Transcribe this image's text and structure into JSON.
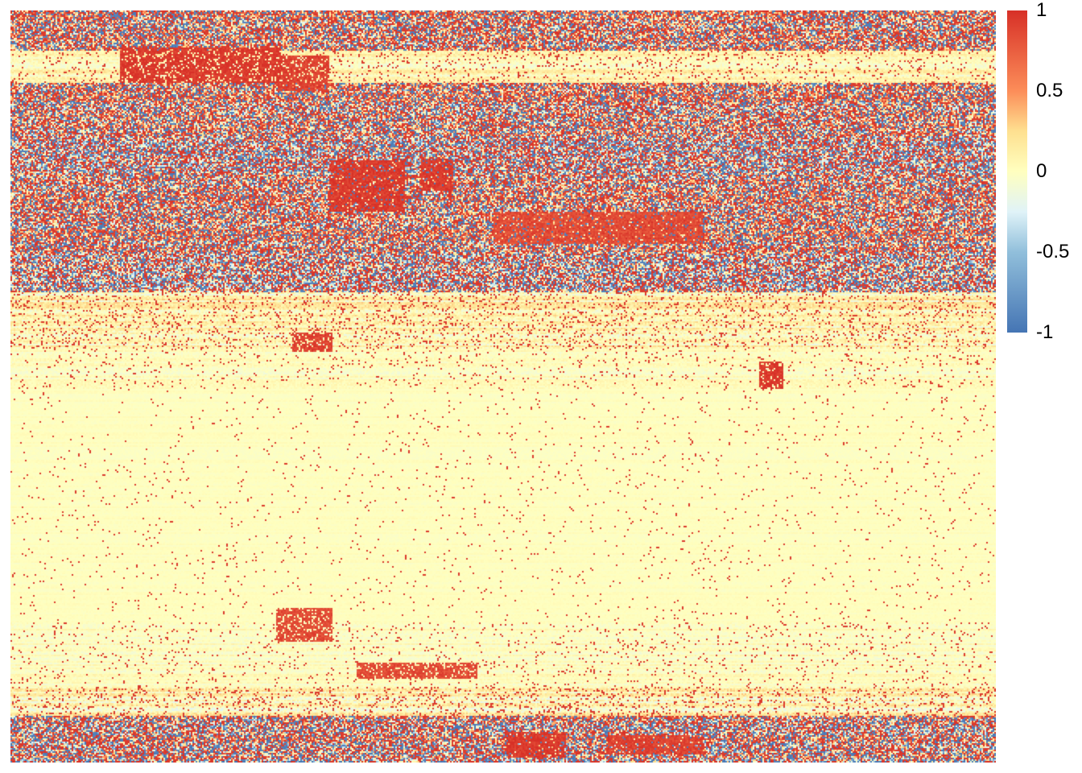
{
  "chart_data": {
    "type": "heatmap",
    "title": "",
    "xlabel": "",
    "ylabel": "",
    "value_range": [
      -1,
      1
    ],
    "colorscale": [
      {
        "value": -1,
        "color": "#4575b4"
      },
      {
        "value": -0.5,
        "color": "#91bfdb"
      },
      {
        "value": -0.25,
        "color": "#e0f3f8"
      },
      {
        "value": 0,
        "color": "#ffffbf"
      },
      {
        "value": 0.25,
        "color": "#fee090"
      },
      {
        "value": 0.5,
        "color": "#fc8d59"
      },
      {
        "value": 1,
        "color": "#d73027"
      }
    ],
    "legend": {
      "position": "right",
      "ticks": [
        {
          "value": 1,
          "label": "1"
        },
        {
          "value": 0.5,
          "label": "0.5"
        },
        {
          "value": 0,
          "label": "0"
        },
        {
          "value": -0.5,
          "label": "-0.5"
        },
        {
          "value": -1,
          "label": "-1"
        }
      ]
    },
    "n_rows": 467,
    "n_cols": 612,
    "row_labels_shown": false,
    "col_labels_shown": false,
    "row_bands": [
      {
        "rows": [
          0,
          25
        ],
        "mean": 0.2,
        "spread": 0.95
      },
      {
        "rows": [
          25,
          45
        ],
        "mean": 0.05,
        "spread": 0.35
      },
      {
        "rows": [
          45,
          80
        ],
        "mean": 0.15,
        "spread": 0.9
      },
      {
        "rows": [
          80,
          100
        ],
        "mean": -0.15,
        "spread": 1.0
      },
      {
        "rows": [
          100,
          150
        ],
        "mean": 0.15,
        "spread": 0.95
      },
      {
        "rows": [
          150,
          175
        ],
        "mean": -0.1,
        "spread": 0.8
      },
      {
        "rows": [
          175,
          210
        ],
        "mean": 0.05,
        "spread": 0.45
      },
      {
        "rows": [
          210,
          235
        ],
        "mean": 0.0,
        "spread": 0.2
      },
      {
        "rows": [
          235,
          380
        ],
        "mean": 0.0,
        "spread": 0.08
      },
      {
        "rows": [
          380,
          420
        ],
        "mean": 0.0,
        "spread": 0.2
      },
      {
        "rows": [
          420,
          438
        ],
        "mean": 0.05,
        "spread": 0.5
      },
      {
        "rows": [
          438,
          467
        ],
        "mean": 0.05,
        "spread": 1.0
      }
    ],
    "hot_blocks": [
      {
        "rows": [
          23,
          45
        ],
        "cols": [
          68,
          168
        ],
        "value": 0.95
      },
      {
        "rows": [
          28,
          50
        ],
        "cols": [
          165,
          198
        ],
        "value": 0.9
      },
      {
        "rows": [
          93,
          125
        ],
        "cols": [
          198,
          245
        ],
        "value": 0.95
      },
      {
        "rows": [
          92,
          112
        ],
        "cols": [
          255,
          275
        ],
        "value": 0.95
      },
      {
        "rows": [
          125,
          145
        ],
        "cols": [
          300,
          430
        ],
        "value": 0.85
      },
      {
        "rows": [
          200,
          212
        ],
        "cols": [
          175,
          200
        ],
        "value": 0.9
      },
      {
        "rows": [
          218,
          235
        ],
        "cols": [
          465,
          480
        ],
        "value": 0.95
      },
      {
        "rows": [
          371,
          392
        ],
        "cols": [
          165,
          200
        ],
        "value": 0.85
      },
      {
        "rows": [
          405,
          415
        ],
        "cols": [
          215,
          290
        ],
        "value": 0.85
      },
      {
        "rows": [
          448,
          464
        ],
        "cols": [
          308,
          345
        ],
        "value": 0.95
      },
      {
        "rows": [
          450,
          462
        ],
        "cols": [
          370,
          430
        ],
        "value": 0.9
      }
    ]
  }
}
